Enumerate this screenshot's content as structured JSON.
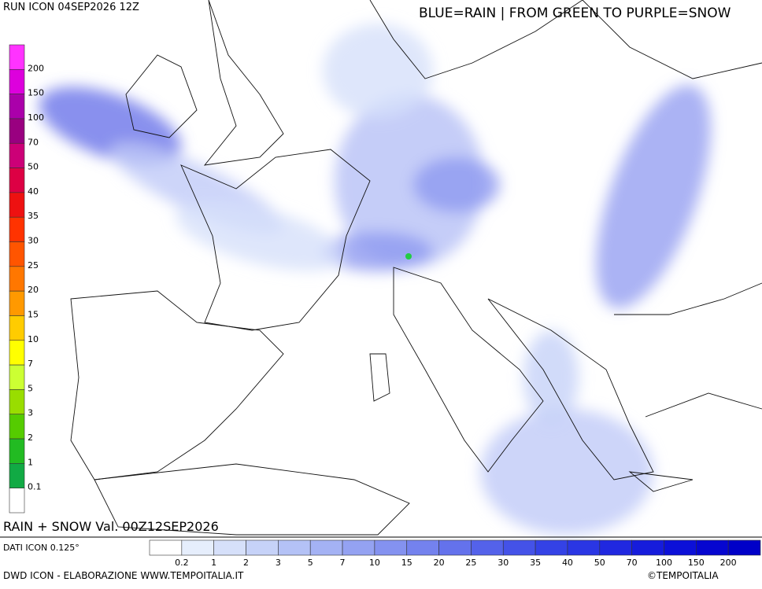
{
  "header": {
    "run": "RUN ICON 04SEP2026 12Z",
    "legend_note": "BLUE=RAIN | FROM GREEN TO PURPLE=SNOW"
  },
  "snow_scale": {
    "labels": [
      200,
      150,
      100,
      70,
      50,
      40,
      35,
      30,
      25,
      20,
      15,
      10,
      7,
      5,
      3,
      2,
      1,
      0.1
    ],
    "colors": [
      "#ff33ff",
      "#dd00dd",
      "#aa00aa",
      "#990080",
      "#cc0077",
      "#dd0044",
      "#ee1111",
      "#ff3300",
      "#ff5500",
      "#ff7700",
      "#ff9900",
      "#ffcc00",
      "#ffff00",
      "#ccff33",
      "#99dd00",
      "#55cc00",
      "#22bb22",
      "#11aa44",
      "#ffffff"
    ]
  },
  "map": {
    "caption": "RAIN + SNOW Val. 00Z12SEP2026"
  },
  "rain_scale": {
    "labels": [
      0.2,
      1,
      2,
      3,
      5,
      7,
      10,
      15,
      20,
      25,
      30,
      35,
      40,
      50,
      70,
      100,
      150,
      200
    ],
    "colors": [
      "#ffffff",
      "#e6eefc",
      "#d6e0fa",
      "#c6d2f8",
      "#b4c2f6",
      "#a4b2f4",
      "#94a2f2",
      "#8492f0",
      "#7482ee",
      "#6472ec",
      "#5462ea",
      "#4452e8",
      "#3442e6",
      "#2a36e4",
      "#2028e0",
      "#161cdc",
      "#0c10d8",
      "#0606d0",
      "#0000c8"
    ]
  },
  "footer": {
    "data_source": "DATI ICON 0.125°",
    "credit": "DWD ICON - ELABORAZIONE WWW.TEMPOITALIA.IT",
    "copyright": "©TEMPOITALIA"
  }
}
